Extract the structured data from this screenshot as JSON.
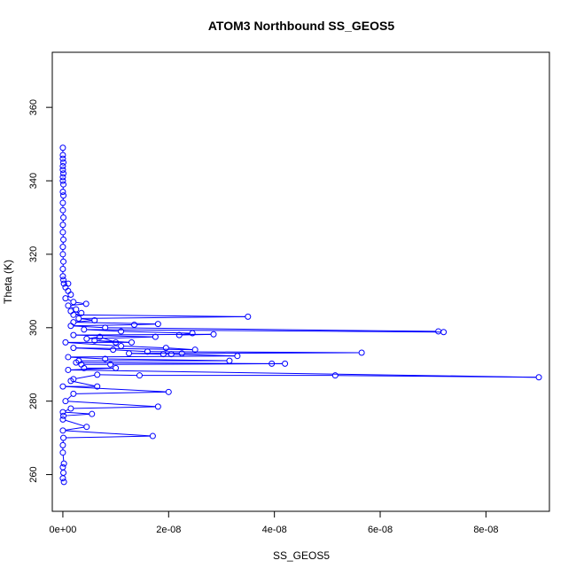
{
  "chart_data": {
    "type": "line",
    "title": "ATOM3 Northbound SS_GEOS5",
    "xlabel": "SS_GEOS5",
    "ylabel": "Theta (K)",
    "xlim": [
      -2e-09,
      9.2e-08
    ],
    "ylim": [
      250,
      375
    ],
    "x_ticks": [
      0,
      2e-08,
      4e-08,
      6e-08,
      8e-08
    ],
    "x_tick_labels": [
      "0e+00",
      "2e-08",
      "4e-08",
      "6e-08",
      "8e-08"
    ],
    "y_ticks": [
      260,
      280,
      300,
      320,
      340,
      360
    ],
    "y_tick_labels": [
      "260",
      "280",
      "300",
      "320",
      "340",
      "360"
    ],
    "grid": false,
    "series_color": "#0000ff",
    "series": [
      {
        "values": [
          [
            0,
            349
          ],
          [
            0,
            347
          ],
          [
            0,
            346
          ],
          [
            1e-10,
            345
          ],
          [
            0,
            344
          ],
          [
            0,
            343
          ],
          [
            1e-10,
            342
          ],
          [
            0,
            341
          ],
          [
            0,
            340
          ],
          [
            1e-10,
            339
          ],
          [
            0,
            337
          ],
          [
            1e-10,
            336
          ],
          [
            0,
            334
          ],
          [
            0,
            332
          ],
          [
            1e-10,
            330
          ],
          [
            0,
            328
          ],
          [
            0,
            326
          ],
          [
            1e-10,
            324
          ],
          [
            0,
            322
          ],
          [
            0,
            320
          ],
          [
            1e-10,
            318
          ],
          [
            0,
            316
          ],
          [
            0,
            314
          ],
          [
            1e-10,
            313
          ],
          [
            2e-10,
            312
          ],
          [
            1e-09,
            312
          ],
          [
            5e-10,
            311
          ],
          [
            1e-09,
            310
          ],
          [
            1.5e-09,
            309
          ],
          [
            5e-10,
            308
          ],
          [
            2e-09,
            307
          ],
          [
            4.4e-09,
            306.5
          ],
          [
            1e-09,
            306
          ],
          [
            2.5e-09,
            305
          ],
          [
            1.5e-09,
            304.5
          ],
          [
            3.5e-09,
            304
          ],
          [
            2e-09,
            303.5
          ],
          [
            3.5e-08,
            303
          ],
          [
            3e-09,
            302.5
          ],
          [
            6e-09,
            302
          ],
          [
            2e-09,
            301.5
          ],
          [
            1.8e-08,
            301
          ],
          [
            1.35e-08,
            300.8
          ],
          [
            1.5e-09,
            300.5
          ],
          [
            8e-09,
            300
          ],
          [
            7.1e-08,
            299
          ],
          [
            7.2e-08,
            298.8
          ],
          [
            4e-09,
            299.5
          ],
          [
            1.1e-08,
            299
          ],
          [
            2.45e-08,
            298.5
          ],
          [
            2.2e-08,
            298
          ],
          [
            2.85e-08,
            298.2
          ],
          [
            2e-09,
            298
          ],
          [
            1.75e-08,
            297.5
          ],
          [
            4.5e-09,
            297
          ],
          [
            7e-09,
            297.5
          ],
          [
            1e-08,
            296
          ],
          [
            6e-09,
            296.5
          ],
          [
            1.3e-08,
            296
          ],
          [
            5e-10,
            296
          ],
          [
            1.1e-08,
            295
          ],
          [
            1.95e-08,
            294.5
          ],
          [
            2.5e-08,
            294
          ],
          [
            2e-09,
            294.5
          ],
          [
            9.5e-09,
            294
          ],
          [
            1.6e-08,
            293.5
          ],
          [
            5.65e-08,
            293.2
          ],
          [
            2.25e-08,
            293
          ],
          [
            1.25e-08,
            293
          ],
          [
            1.9e-08,
            292.8
          ],
          [
            2.05e-08,
            292.8
          ],
          [
            3.3e-08,
            292.3
          ],
          [
            1e-09,
            292
          ],
          [
            8e-09,
            291.5
          ],
          [
            3.15e-08,
            291
          ],
          [
            3e-09,
            291
          ],
          [
            2.5e-09,
            290.5
          ],
          [
            3.95e-08,
            290.2
          ],
          [
            4.2e-08,
            290.2
          ],
          [
            9e-09,
            290
          ],
          [
            3.5e-09,
            290
          ],
          [
            4e-09,
            289
          ],
          [
            1e-08,
            289
          ],
          [
            1e-09,
            288.5
          ],
          [
            9e-08,
            286.5
          ],
          [
            5.15e-08,
            287
          ],
          [
            1.45e-08,
            287
          ],
          [
            6.5e-09,
            287.2
          ],
          [
            2e-09,
            286
          ],
          [
            1.5e-09,
            285.5
          ],
          [
            6.5e-09,
            284
          ],
          [
            0,
            284
          ],
          [
            2e-08,
            282.5
          ],
          [
            2e-09,
            282
          ],
          [
            5e-10,
            280
          ],
          [
            1.8e-08,
            278.5
          ],
          [
            1.5e-09,
            278
          ],
          [
            0,
            277
          ],
          [
            5.5e-09,
            276.5
          ],
          [
            1e-10,
            276
          ],
          [
            0,
            275
          ],
          [
            4.5e-09,
            273
          ],
          [
            0,
            272
          ],
          [
            1.7e-08,
            270.5
          ],
          [
            1e-10,
            270
          ],
          [
            0,
            268
          ],
          [
            0,
            266
          ],
          [
            2e-10,
            263
          ],
          [
            0,
            262
          ],
          [
            1e-10,
            260.5
          ],
          [
            0,
            259
          ],
          [
            2e-10,
            258
          ]
        ]
      }
    ]
  }
}
